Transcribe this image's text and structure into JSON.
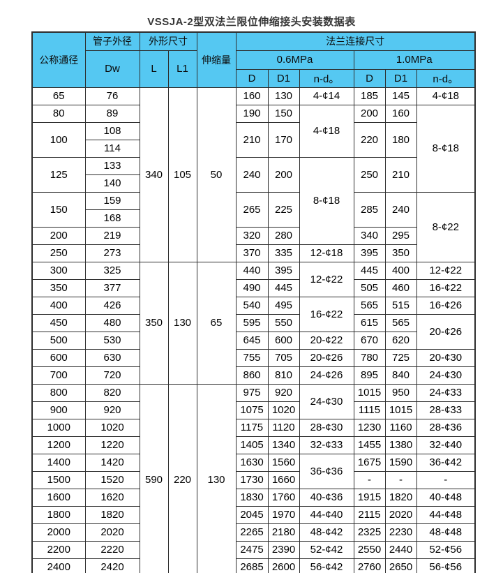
{
  "title": "VSSJA-2型双法兰限位伸缩接头安装数据表",
  "colors": {
    "header_bg": "#55c8f2",
    "border": "#2d2d2d",
    "title_text": "#383838",
    "cell_text": "#000000"
  },
  "table": {
    "header": {
      "nominal_diameter": "公称通径",
      "pipe_outer_diameter": "管子外径",
      "pipe_outer_diameter_symbol": "Dw",
      "overall_dimensions": "外形尺寸",
      "l": "L",
      "l1": "L1",
      "expansion_amount": "伸缩量",
      "flange_connection": "法兰连接尺寸",
      "pressure_06": "0.6MPa",
      "pressure_10": "1.0MPa",
      "d": "D",
      "d1": "D1",
      "nd": "n-d。"
    },
    "columns_order": [
      "公称通径",
      "Dw",
      "L",
      "L1",
      "伸缩量",
      "0.6MPa D",
      "0.6MPa D1",
      "0.6MPa n-d。",
      "1.0MPa D",
      "1.0MPa D1",
      "1.0MPa n-d。"
    ],
    "rows": [
      [
        "65",
        "76",
        [
          "340",
          10
        ],
        [
          "105",
          10
        ],
        [
          "50",
          10
        ],
        "160",
        "130",
        "4-¢14",
        "185",
        "145",
        "4-¢18"
      ],
      [
        "80",
        "89",
        "190",
        "150",
        [
          "4-¢18",
          3
        ],
        "200",
        "160",
        [
          "8-¢18",
          5
        ]
      ],
      [
        [
          "100",
          2
        ],
        "108",
        [
          "210",
          2
        ],
        [
          "170",
          2
        ],
        [
          "220",
          2
        ],
        [
          "180",
          2
        ]
      ],
      [
        "114"
      ],
      [
        [
          "125",
          2
        ],
        "133",
        [
          "240",
          2
        ],
        [
          "200",
          2
        ],
        [
          "8-¢18",
          5
        ],
        [
          "250",
          2
        ],
        [
          "210",
          2
        ]
      ],
      [
        "140"
      ],
      [
        [
          "150",
          2
        ],
        "159",
        [
          "265",
          2
        ],
        [
          "225",
          2
        ],
        [
          "285",
          2
        ],
        [
          "240",
          2
        ],
        [
          "8-¢22",
          4
        ]
      ],
      [
        "168"
      ],
      [
        "200",
        "219",
        "320",
        "280",
        "340",
        "295"
      ],
      [
        "250",
        "273",
        "370",
        "335",
        "12-¢18",
        "395",
        "350"
      ],
      [
        "300",
        "325",
        [
          "350",
          7
        ],
        [
          "130",
          7
        ],
        [
          "65",
          7
        ],
        "440",
        "395",
        [
          "12-¢22",
          2
        ],
        "445",
        "400",
        "12-¢22"
      ],
      [
        "350",
        "377",
        "490",
        "445",
        "505",
        "460",
        "16-¢22"
      ],
      [
        "400",
        "426",
        "540",
        "495",
        [
          "16-¢22",
          2
        ],
        "565",
        "515",
        "16-¢26"
      ],
      [
        "450",
        "480",
        "595",
        "550",
        "615",
        "565",
        [
          "20-¢26",
          2
        ]
      ],
      [
        "500",
        "530",
        "645",
        "600",
        "20-¢22",
        "670",
        "620"
      ],
      [
        "600",
        "630",
        "755",
        "705",
        "20-¢26",
        "780",
        "725",
        "20-¢30"
      ],
      [
        "700",
        "720",
        "860",
        "810",
        "24-¢26",
        "895",
        "840",
        "24-¢30"
      ],
      [
        "800",
        "820",
        [
          "590",
          11
        ],
        [
          "220",
          11
        ],
        [
          "130",
          11
        ],
        "975",
        "920",
        [
          "24-¢30",
          2
        ],
        "1015",
        "950",
        "24-¢33"
      ],
      [
        "900",
        "920",
        "1075",
        "1020",
        "1115",
        "1015",
        "28-¢33"
      ],
      [
        "1000",
        "1020",
        "1175",
        "1120",
        "28-¢30",
        "1230",
        "1160",
        "28-¢36"
      ],
      [
        "1200",
        "1220",
        "1405",
        "1340",
        "32-¢33",
        "1455",
        "1380",
        "32-¢40"
      ],
      [
        "1400",
        "1420",
        "1630",
        "1560",
        [
          "36-¢36",
          2
        ],
        "1675",
        "1590",
        "36-¢42"
      ],
      [
        "1500",
        "1520",
        "1730",
        "1660",
        "-",
        "-",
        "-"
      ],
      [
        "1600",
        "1620",
        "1830",
        "1760",
        "40-¢36",
        "1915",
        "1820",
        "40-¢48"
      ],
      [
        "1800",
        "1820",
        "2045",
        "1970",
        "44-¢40",
        "2115",
        "2020",
        "44-¢48"
      ],
      [
        "2000",
        "2020",
        "2265",
        "2180",
        "48-¢42",
        "2325",
        "2230",
        "48-¢48"
      ],
      [
        "2200",
        "2220",
        "2475",
        "2390",
        "52-¢42",
        "2550",
        "2440",
        "52-¢56"
      ],
      [
        "2400",
        "2420",
        "2685",
        "2600",
        "56-¢42",
        "2760",
        "2650",
        "56-¢56"
      ]
    ]
  }
}
